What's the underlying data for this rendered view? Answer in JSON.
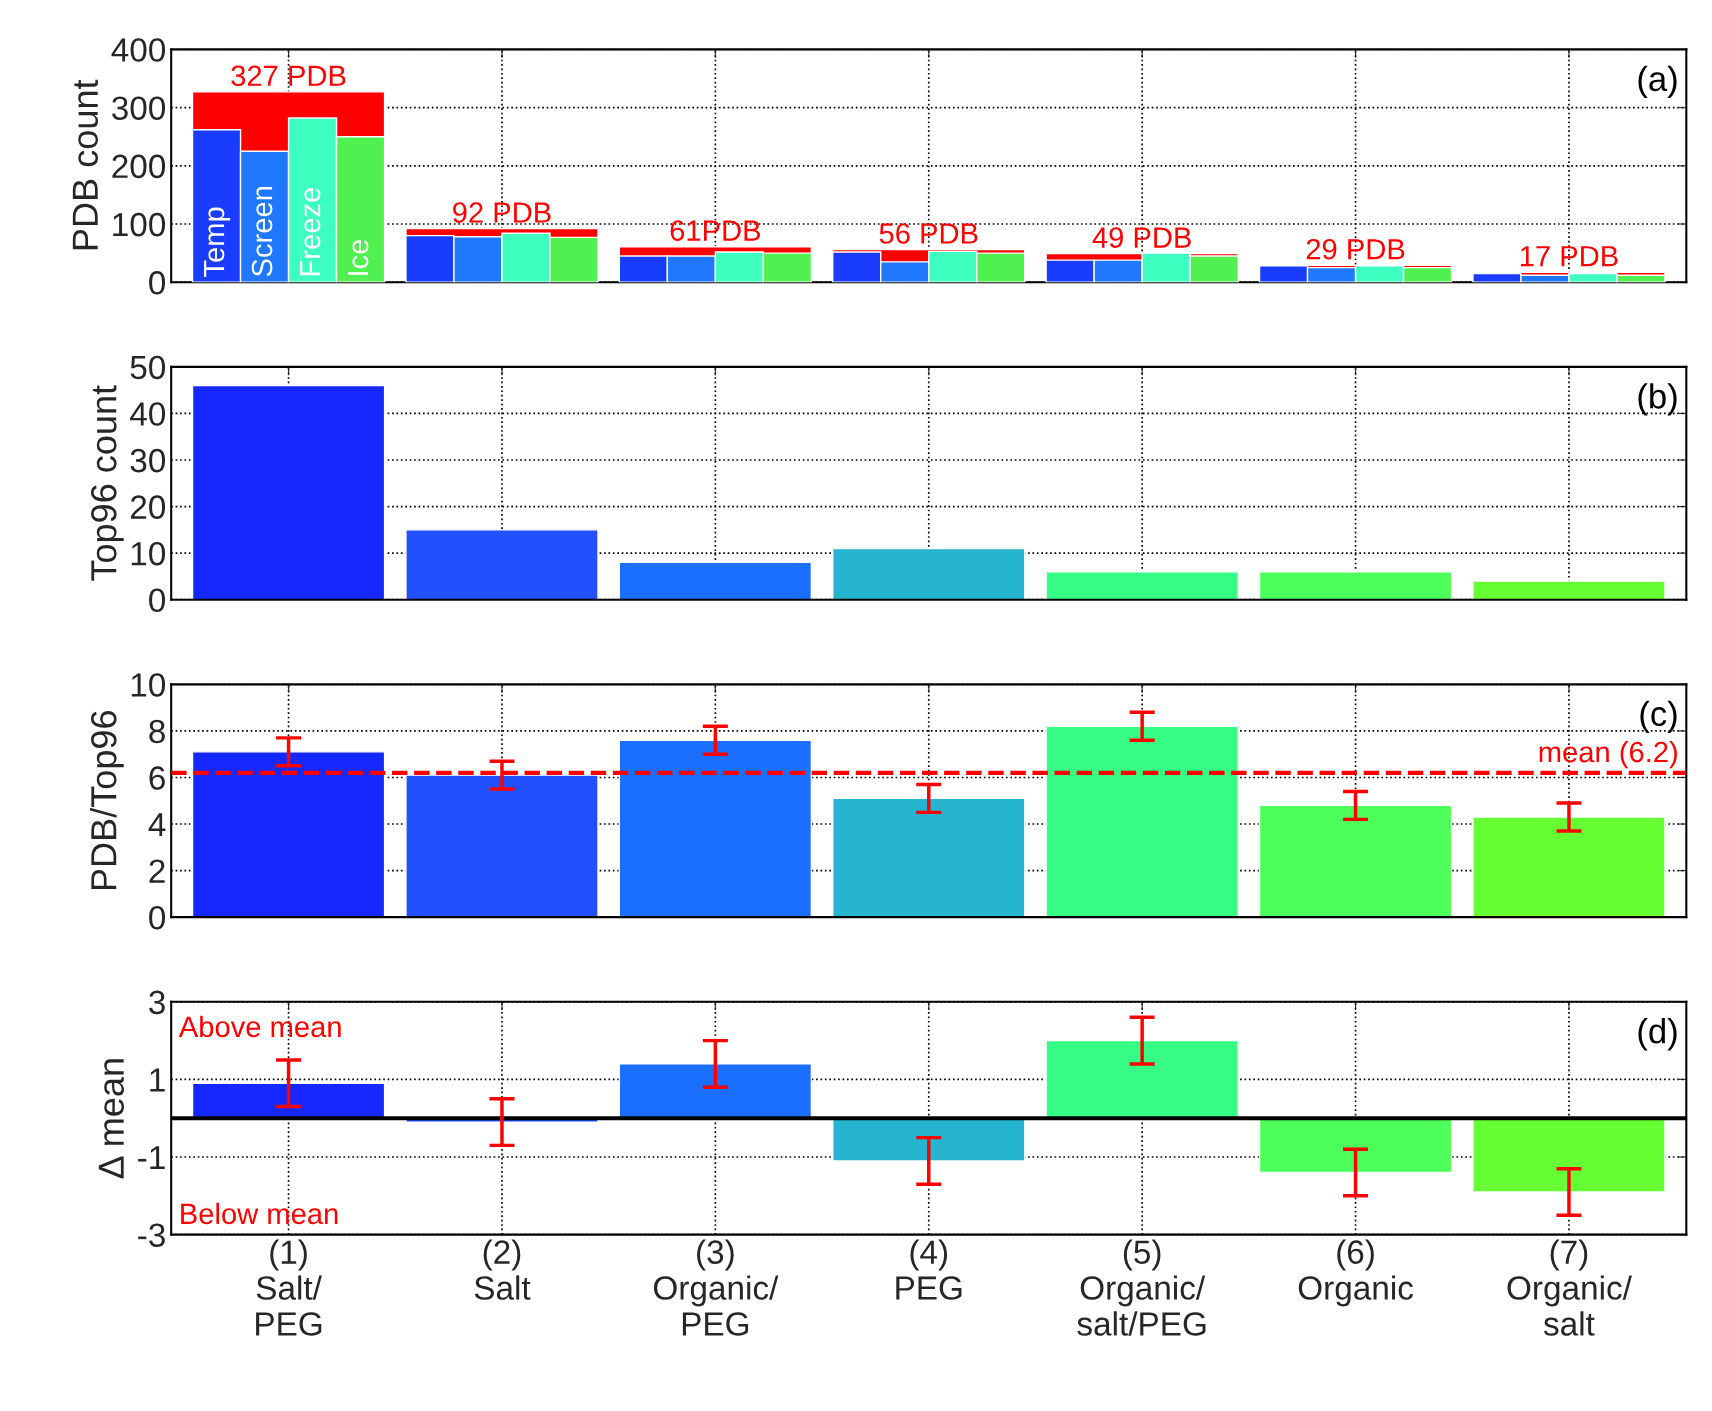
{
  "chart_data": [
    {
      "type": "bar",
      "ylabel": "PDB count",
      "categories": [
        null,
        null,
        null,
        null,
        null,
        null,
        null
      ],
      "series": [
        {
          "color": "#ff0000",
          "values": [
            327,
            92,
            61,
            56,
            49,
            29,
            17
          ],
          "value_labels": [
            "327 PDB",
            "92 PDB",
            "61PDB",
            "56 PDB",
            "49 PDB",
            "29 PDB",
            "17 PDB"
          ]
        },
        {
          "name": "Temp",
          "color": "#1a3cff",
          "values": [
            262,
            80,
            45,
            52,
            38,
            28,
            15
          ]
        },
        {
          "name": "Screen",
          "color": "#1f78ff",
          "values": [
            225,
            78,
            45,
            35,
            38,
            25,
            12
          ]
        },
        {
          "name": "Freeze",
          "color": "#3cffc0",
          "values": [
            282,
            84,
            52,
            53,
            50,
            28,
            15
          ]
        },
        {
          "name": "Ice",
          "color": "#50f050",
          "values": [
            250,
            77,
            50,
            50,
            45,
            25,
            12
          ]
        }
      ],
      "ylim": [
        0,
        400
      ],
      "yticks": [
        0,
        100,
        200,
        300,
        400
      ],
      "grid": true,
      "annotations": [
        "(a)"
      ]
    },
    {
      "type": "bar",
      "ylabel": "Top96 count",
      "categories": [
        null,
        null,
        null,
        null,
        null,
        null,
        null
      ],
      "values": [
        46,
        15,
        8,
        11,
        6,
        6,
        4
      ],
      "colors": [
        "#1428ff",
        "#2050ff",
        "#1a6fff",
        "#25b5cf",
        "#37ff86",
        "#4dff5a",
        "#66ff33"
      ],
      "ylim": [
        0,
        50
      ],
      "yticks": [
        0,
        10,
        20,
        30,
        40,
        50
      ],
      "grid": true,
      "annotations": [
        "(b)"
      ]
    },
    {
      "type": "bar",
      "ylabel": "PDB/Top96",
      "categories": [
        null,
        null,
        null,
        null,
        null,
        null,
        null
      ],
      "values": [
        7.1,
        6.1,
        7.6,
        5.1,
        8.2,
        4.8,
        4.3
      ],
      "errors": [
        0.6,
        0.6,
        0.6,
        0.6,
        0.6,
        0.6,
        0.6
      ],
      "colors": [
        "#1428ff",
        "#2050ff",
        "#1a6fff",
        "#25b5cf",
        "#37ff86",
        "#4dff5a",
        "#66ff33"
      ],
      "ref_lines": [
        {
          "axis": "y",
          "value": 6.2,
          "label": "mean (6.2)",
          "color": "#ff0000",
          "line_style": "dashed"
        }
      ],
      "ylim": [
        0,
        10
      ],
      "yticks": [
        0,
        2,
        4,
        6,
        8,
        10
      ],
      "grid": true,
      "annotations": [
        "(c)"
      ]
    },
    {
      "type": "bar",
      "ylabel": "Δ mean",
      "categories": [
        "(1)\nSalt/\nPEG",
        "(2)\nSalt",
        "(3)\nOrganic/\nPEG",
        "(4)\nPEG",
        "(5)\nOrganic/\nsalt/PEG",
        "(6)\nOrganic",
        "(7)\nOrganic/\nsalt"
      ],
      "values": [
        0.9,
        -0.1,
        1.4,
        -1.1,
        2.0,
        -1.4,
        -1.9
      ],
      "errors": [
        0.6,
        0.6,
        0.6,
        0.6,
        0.6,
        0.6,
        0.6
      ],
      "colors": [
        "#1428ff",
        "#2050ff",
        "#1a6fff",
        "#25b5cf",
        "#37ff86",
        "#4dff5a",
        "#66ff33"
      ],
      "ref_lines": [
        {
          "axis": "y",
          "value": 0,
          "color": "#000000",
          "line_style": "solid"
        }
      ],
      "ylim": [
        -3,
        3
      ],
      "yticks": [
        -3,
        -1,
        1,
        3
      ],
      "grid": true,
      "annotations": [
        "(d)",
        "Above mean",
        "Below mean"
      ]
    }
  ]
}
